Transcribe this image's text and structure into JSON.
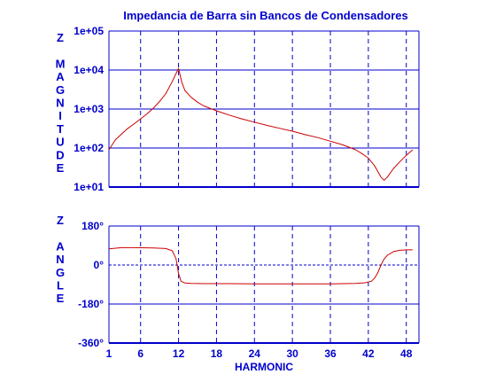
{
  "chart_data": {
    "title": "Impedancia de Barra sin Bancos de Condensadores",
    "xlabel": "HARMONIC",
    "xlim": [
      1,
      50
    ],
    "x_ticks": [
      "1",
      "6",
      "12",
      "18",
      "24",
      "30",
      "36",
      "42",
      "48"
    ],
    "x_tick_values": [
      1,
      6,
      12,
      18,
      24,
      30,
      36,
      42,
      48
    ],
    "grid": true,
    "colors": {
      "axes": "#0000cc",
      "curve": "#cc0000",
      "background": "#ffffff"
    },
    "panels": [
      {
        "name": "magnitude",
        "type": "line",
        "ylabel": "Z MAGNITUDE",
        "yscale": "log",
        "ylim": [
          10,
          100000
        ],
        "y_ticks": [
          "1e+05",
          "1e+04",
          "1e+03",
          "1e+02",
          "1e+01"
        ],
        "series": [
          {
            "x": [
              1,
              2,
              3,
              4,
              5,
              6,
              7,
              8,
              9,
              10,
              11,
              11.5,
              12,
              12.5,
              13,
              14,
              15,
              16,
              18,
              20,
              22,
              24,
              26,
              28,
              30,
              32,
              34,
              36,
              38,
              40,
              41,
              42,
              43,
              44,
              44.5,
              45,
              46,
              47,
              48,
              49
            ],
            "y": [
              90,
              160,
              230,
              320,
              420,
              560,
              750,
              1050,
              1550,
              2500,
              5000,
              7500,
              11000,
              5000,
              3000,
              2000,
              1500,
              1200,
              900,
              700,
              560,
              460,
              380,
              320,
              270,
              220,
              185,
              150,
              120,
              90,
              72,
              55,
              35,
              18,
              15,
              18,
              30,
              45,
              65,
              90
            ]
          }
        ]
      },
      {
        "name": "angle",
        "type": "line",
        "ylabel": "Z ANGLE",
        "ylim": [
          -360,
          180
        ],
        "y_ticks": [
          "180°",
          "0°",
          "-180°",
          "-360°"
        ],
        "series": [
          {
            "x": [
              1,
              3,
              5,
              8,
              10,
              11,
              11.6,
              12,
              12.4,
              13,
              14,
              16,
              20,
              24,
              30,
              36,
              40,
              41.5,
              42.5,
              43,
              43.5,
              44,
              44.5,
              45,
              46,
              47,
              48,
              49
            ],
            "y": [
              75,
              80,
              80,
              79,
              76,
              66,
              30,
              -40,
              -75,
              -83,
              -85,
              -86,
              -86,
              -87,
              -87,
              -87,
              -85,
              -82,
              -75,
              -60,
              -35,
              0,
              28,
              45,
              62,
              68,
              70,
              70
            ]
          }
        ]
      }
    ]
  }
}
